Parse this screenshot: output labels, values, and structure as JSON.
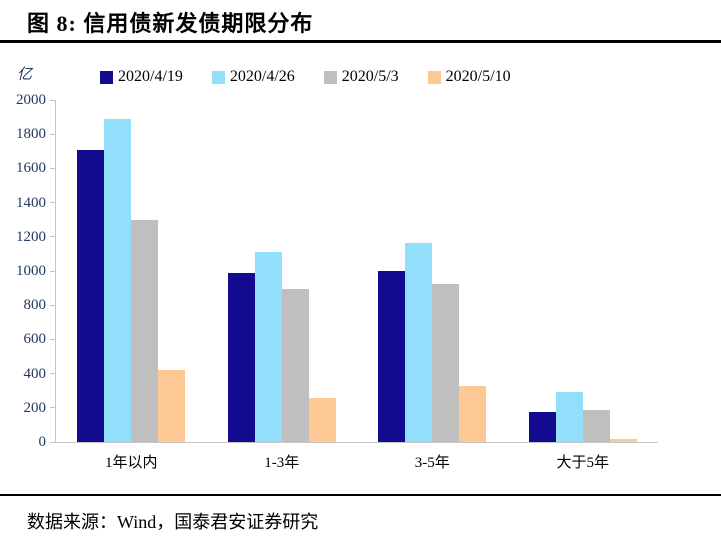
{
  "header": {
    "title": "图 8:  信用债新发债期限分布"
  },
  "footer": {
    "source": "数据来源：Wind，国泰君安证券研究"
  },
  "chart_data": {
    "type": "bar",
    "title": "信用债新发债期限分布",
    "unit_label": "亿",
    "categories": [
      "1年以内",
      "1-3年",
      "3-5年",
      "大于5年"
    ],
    "series": [
      {
        "name": "2020/4/19",
        "color": "#120A8F",
        "values": [
          1710,
          990,
          1000,
          175
        ]
      },
      {
        "name": "2020/4/26",
        "color": "#92DFFC",
        "values": [
          1890,
          1110,
          1165,
          290
        ]
      },
      {
        "name": "2020/5/3",
        "color": "#BFBFBF",
        "values": [
          1300,
          895,
          925,
          185
        ]
      },
      {
        "name": "2020/5/10",
        "color": "#FDC893",
        "values": [
          420,
          260,
          330,
          20
        ]
      }
    ],
    "ylim": [
      0,
      2000
    ],
    "ytick_step": 200,
    "grid": false,
    "legend_position": "top",
    "axis_label_color": "#1F3864",
    "axis_line_color": "#C6C6C6"
  }
}
